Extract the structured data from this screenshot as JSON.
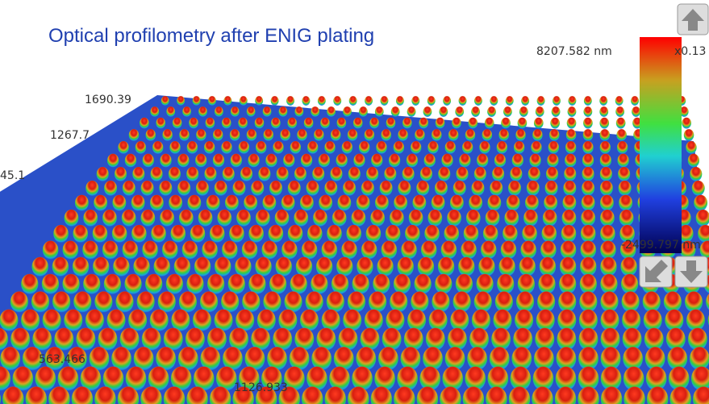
{
  "title": "Optical profilometry after ENIG plating",
  "scale": {
    "max": "8207.582 nm",
    "factor": "x0.13",
    "min": "-2499.797 nm"
  },
  "axis_labels": [
    "1690.39",
    "1267.7",
    "45.1",
    "563.466",
    "1126.933"
  ]
}
